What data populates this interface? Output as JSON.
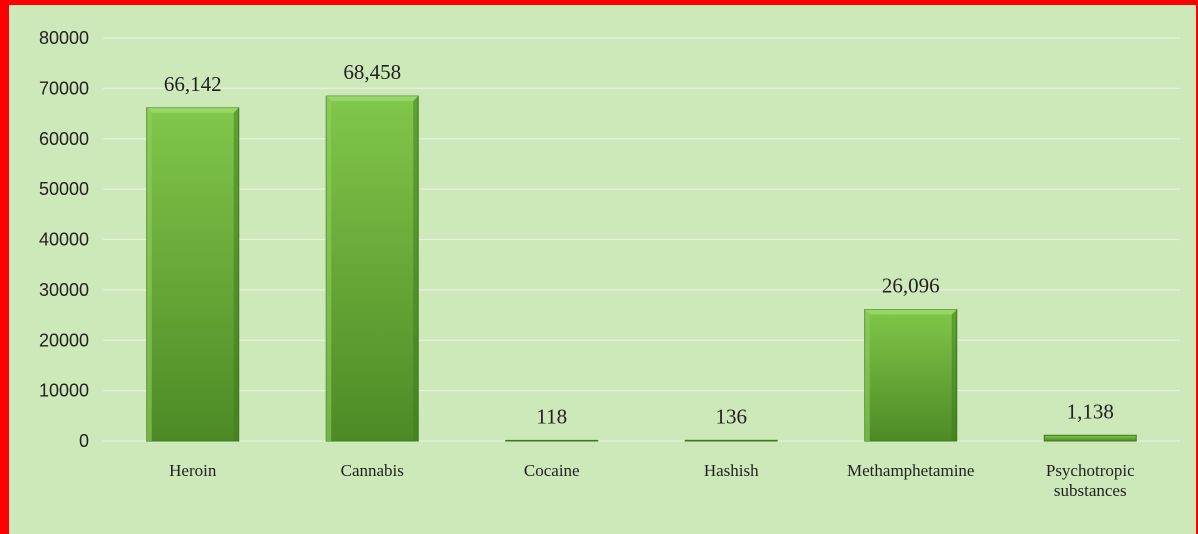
{
  "chart_data": {
    "type": "bar",
    "categories": [
      "Heroin",
      "Cannabis",
      "Cocaine",
      "Hashish",
      "Methamphetamine",
      "Psychotropic substances"
    ],
    "category_lines": [
      [
        "Heroin"
      ],
      [
        "Cannabis"
      ],
      [
        "Cocaine"
      ],
      [
        "Hashish"
      ],
      [
        "Methamphetamine"
      ],
      [
        "Psychotropic",
        "substances"
      ]
    ],
    "values": [
      66142,
      68458,
      118,
      136,
      26096,
      1138
    ],
    "data_labels": [
      "66,142",
      "68,458",
      "118",
      "136",
      "26,096",
      "1,138"
    ],
    "ylim": [
      0,
      80000
    ],
    "yticks": [
      0,
      10000,
      20000,
      30000,
      40000,
      50000,
      60000,
      70000,
      80000
    ],
    "ytick_labels": [
      "0",
      "10000",
      "20000",
      "30000",
      "40000",
      "50000",
      "60000",
      "70000",
      "80000"
    ],
    "title": "",
    "xlabel": "",
    "ylabel": "",
    "grid": true,
    "legend": "none",
    "colors": {
      "background": "#cde8b9",
      "border": "#ff0000",
      "bar_light": "#80c74a",
      "bar_dark": "#4d8a26",
      "gridline": "#e6f1dd",
      "text": "#222222"
    }
  }
}
